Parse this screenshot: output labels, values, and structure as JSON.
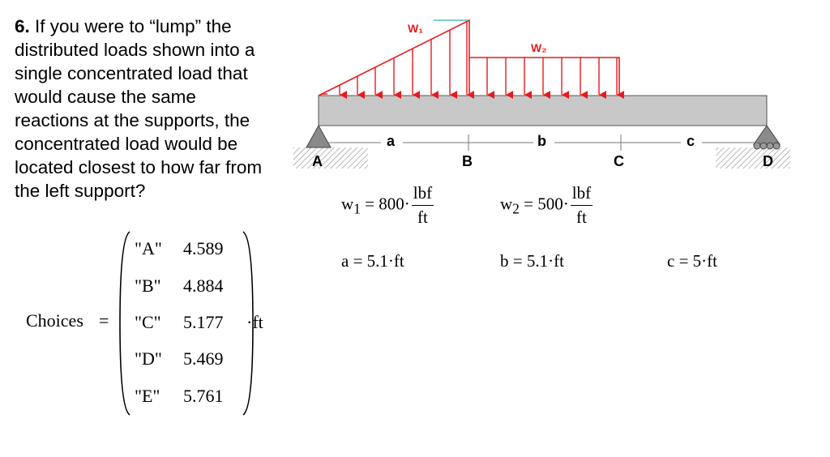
{
  "question": {
    "number": "6.",
    "text": "If you were to “lump” the distributed loads shown into a single concentrated load that would cause the same reactions at the supports, the concentrated load would be located closest to how far from the left support?"
  },
  "choices": {
    "label": "Choices",
    "unit": "ft",
    "rows": [
      {
        "letter": "\"A\"",
        "value": "4.589"
      },
      {
        "letter": "\"B\"",
        "value": "4.884"
      },
      {
        "letter": "\"C\"",
        "value": "5.177"
      },
      {
        "letter": "\"D\"",
        "value": "5.469"
      },
      {
        "letter": "\"E\"",
        "value": "5.761"
      }
    ]
  },
  "diagram": {
    "load_label_1": "W₁",
    "load_label_2": "W₂",
    "span_labels": {
      "a": "a",
      "b": "b",
      "c": "c"
    },
    "point_labels": {
      "A": "A",
      "B": "B",
      "C": "C",
      "D": "D"
    },
    "load_color": "#e8191f",
    "beam_color": "#c8c8c8"
  },
  "givens": {
    "w1": {
      "symbol": "w",
      "sub": "1",
      "value": "800",
      "unit_num": "lbf",
      "unit_den": "ft"
    },
    "w2": {
      "symbol": "w",
      "sub": "2",
      "value": "500",
      "unit_num": "lbf",
      "unit_den": "ft"
    },
    "a": {
      "text": "a = 5.1·ft"
    },
    "b": {
      "text": "b = 5.1·ft"
    },
    "c": {
      "text": "c = 5·ft"
    }
  }
}
